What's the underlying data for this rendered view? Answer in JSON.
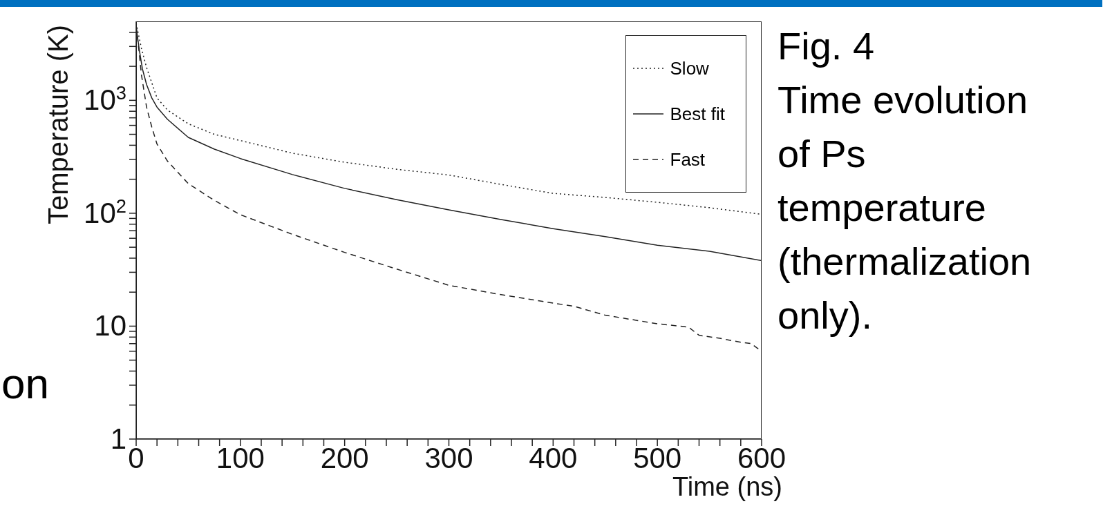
{
  "chart_data": {
    "type": "line",
    "xlabel": "Time (ns)",
    "ylabel": "Temperature (K)",
    "annotations": [
      "Fig. 4\nTime evolution\nof Ps\ntemperature\n(thermalization\nonly).",
      "on"
    ],
    "xlim": [
      0,
      600
    ],
    "xticks": [
      0,
      {
        "value": 20,
        "label": null
      },
      {
        "value": 40,
        "label": null
      },
      {
        "value": 60,
        "label": null
      },
      {
        "value": 80,
        "label": null
      },
      100,
      {
        "value": 120,
        "label": null
      },
      {
        "value": 140,
        "label": null
      },
      {
        "value": 160,
        "label": null
      },
      {
        "value": 180,
        "label": null
      },
      200,
      {
        "value": 220,
        "label": null
      },
      {
        "value": 240,
        "label": null
      },
      {
        "value": 260,
        "label": null
      },
      {
        "value": 280,
        "label": null
      },
      300,
      {
        "value": 320,
        "label": null
      },
      {
        "value": 340,
        "label": null
      },
      {
        "value": 360,
        "label": null
      },
      {
        "value": 380,
        "label": null
      },
      400,
      {
        "value": 420,
        "label": null
      },
      {
        "value": 440,
        "label": null
      },
      {
        "value": 460,
        "label": null
      },
      {
        "value": 480,
        "label": null
      },
      500,
      {
        "value": 520,
        "label": null
      },
      {
        "value": 540,
        "label": null
      },
      {
        "value": 560,
        "label": null
      },
      {
        "value": 580,
        "label": null
      },
      600
    ],
    "ylim": [
      1,
      5000
    ],
    "log": "y",
    "yticks": [
      1,
      {
        "value": 2,
        "label": null
      },
      {
        "value": 3,
        "label": null
      },
      {
        "value": 4,
        "label": null
      },
      {
        "value": 5,
        "label": null
      },
      {
        "value": 6,
        "label": null
      },
      {
        "value": 7,
        "label": null
      },
      {
        "value": 8,
        "label": null
      },
      {
        "value": 9,
        "label": null
      },
      10,
      {
        "value": 20,
        "label": null
      },
      {
        "value": 30,
        "label": null
      },
      {
        "value": 40,
        "label": null
      },
      {
        "value": 50,
        "label": null
      },
      {
        "value": 60,
        "label": null
      },
      {
        "value": 70,
        "label": null
      },
      {
        "value": 80,
        "label": null
      },
      {
        "value": 90,
        "label": null
      },
      {
        "value": 100,
        "label": "10$^{2}$"
      },
      {
        "value": 200,
        "label": null
      },
      {
        "value": 300,
        "label": null
      },
      {
        "value": 400,
        "label": null
      },
      {
        "value": 500,
        "label": null
      },
      {
        "value": 600,
        "label": null
      },
      {
        "value": 700,
        "label": null
      },
      {
        "value": 800,
        "label": null
      },
      {
        "value": 900,
        "label": null
      },
      {
        "value": 1000,
        "label": "10$^{3}$"
      },
      {
        "value": 2000,
        "label": null
      },
      {
        "value": 3000,
        "label": null
      },
      {
        "value": 4000,
        "label": null
      }
    ],
    "grid": false,
    "legend": "top right",
    "marker": "none",
    "series": [
      {
        "name": "Slow",
        "color": "#222222",
        "line_style": "dotted",
        "x": [
          0,
          5,
          10,
          20,
          30,
          50,
          75,
          100,
          150,
          200,
          250,
          300,
          350,
          400,
          450,
          500,
          550,
          600
        ],
        "values": [
          4800,
          2900,
          1950,
          1050,
          820,
          620,
          500,
          440,
          340,
          283,
          245,
          218,
          180,
          150,
          138,
          125,
          112,
          98
        ]
      },
      {
        "name": "Best fit",
        "color": "#222222",
        "line_style": "solid",
        "x": [
          0,
          3,
          6,
          10,
          15,
          20,
          30,
          50,
          75,
          100,
          150,
          200,
          250,
          300,
          350,
          400,
          450,
          500,
          550,
          600
        ],
        "values": [
          4500,
          2800,
          1900,
          1380,
          1050,
          870,
          680,
          470,
          370,
          305,
          220,
          166,
          132,
          107,
          88,
          73,
          62,
          52,
          46,
          38
        ]
      },
      {
        "name": "Fast",
        "color": "#222222",
        "line_style": "dashed",
        "x": [
          0,
          3,
          5,
          10,
          15,
          20,
          30,
          50,
          75,
          100,
          150,
          200,
          250,
          300,
          350,
          400,
          420,
          450,
          500,
          530,
          540,
          560,
          580,
          590,
          600
        ],
        "values": [
          4500,
          2600,
          1700,
          870,
          580,
          410,
          290,
          183,
          130,
          97,
          65,
          45,
          32,
          23,
          19,
          16,
          15,
          12.5,
          10.5,
          9.8,
          8.3,
          7.8,
          7.2,
          7.0,
          6.0
        ]
      }
    ]
  }
}
